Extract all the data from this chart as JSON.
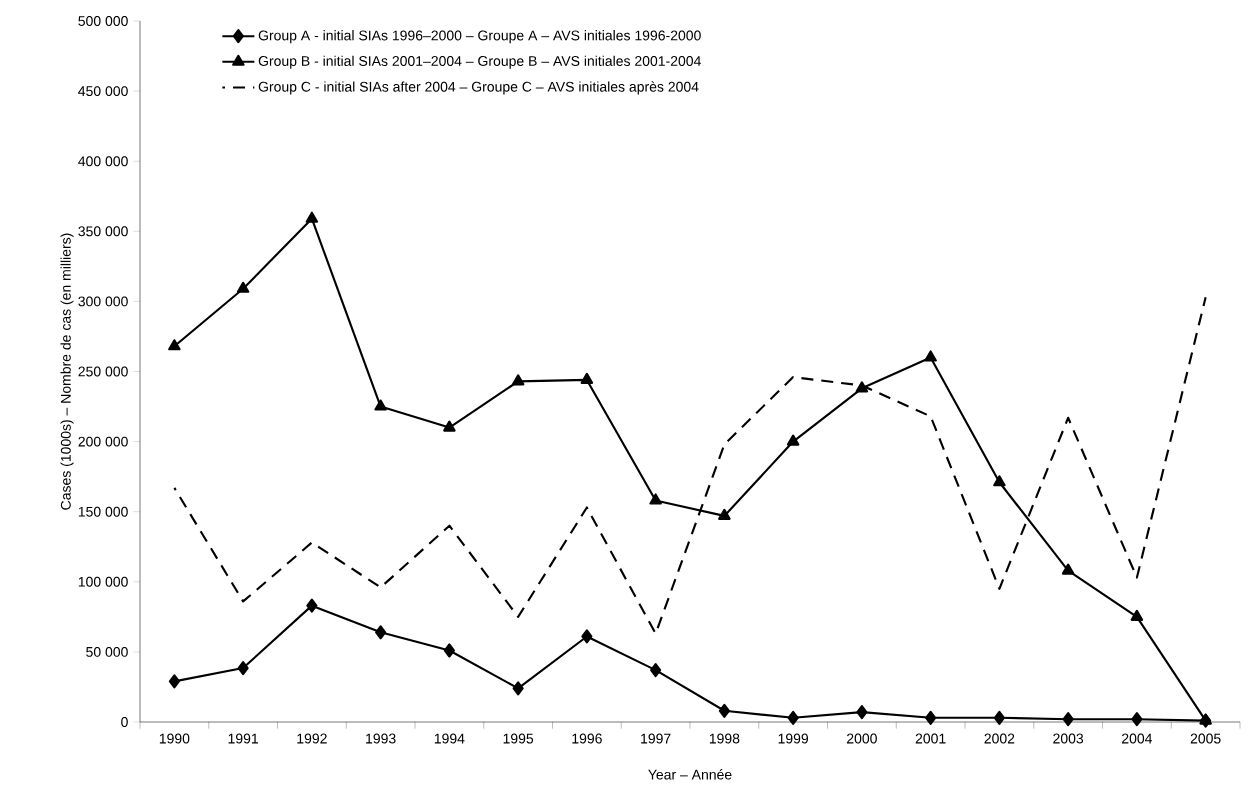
{
  "chart_data": {
    "type": "line",
    "xlabel": "Year – Année",
    "ylabel": "Cases (1000s) – Nombre de cas (en milliers)",
    "categories": [
      "1990",
      "1991",
      "1992",
      "1993",
      "1994",
      "1995",
      "1996",
      "1997",
      "1998",
      "1999",
      "2000",
      "2001",
      "2002",
      "2003",
      "2004",
      "2005"
    ],
    "series": [
      {
        "name": "Group A - initial SIAs 1996–2000 – Groupe A – AVS initiales 1996-2000",
        "color": "#000000",
        "marker": "diamond",
        "line_style": "solid",
        "values": [
          29000,
          38500,
          83000,
          64000,
          51000,
          24000,
          61000,
          37000,
          8000,
          3000,
          7000,
          3000,
          3000,
          2000,
          2000,
          1000
        ]
      },
      {
        "name": "Group B - initial SIAs 2001–2004 – Groupe B – AVS initiales 2001-2004",
        "color": "#000000",
        "marker": "triangle",
        "line_style": "solid",
        "values": [
          268000,
          309000,
          359000,
          225000,
          210000,
          243000,
          244000,
          158000,
          147000,
          200000,
          238000,
          260000,
          171000,
          108000,
          75000,
          1000
        ]
      },
      {
        "name": "Group C - initial SIAs after 2004 – Groupe C – AVS initiales après 2004",
        "color": "#000000",
        "marker": "none",
        "line_style": "dashed",
        "values": [
          167000,
          86000,
          128000,
          96000,
          140000,
          75000,
          153000,
          63000,
          198000,
          246000,
          240000,
          218000,
          95000,
          217000,
          103000,
          303000
        ]
      }
    ],
    "ylim": [
      0,
      500000
    ],
    "yticks": [
      0,
      {
        "value": 50000,
        "label": "50 000"
      },
      {
        "value": 100000,
        "label": "100 000"
      },
      {
        "value": 150000,
        "label": "150 000"
      },
      {
        "value": 200000,
        "label": "200 000"
      },
      {
        "value": 250000,
        "label": "250 000"
      },
      {
        "value": 300000,
        "label": "300 000"
      },
      {
        "value": 350000,
        "label": "350 000"
      },
      {
        "value": 400000,
        "label": "400 000"
      },
      {
        "value": 450000,
        "label": "450 000"
      },
      {
        "value": 500000,
        "label": "500 000"
      }
    ],
    "legend": "top left"
  }
}
